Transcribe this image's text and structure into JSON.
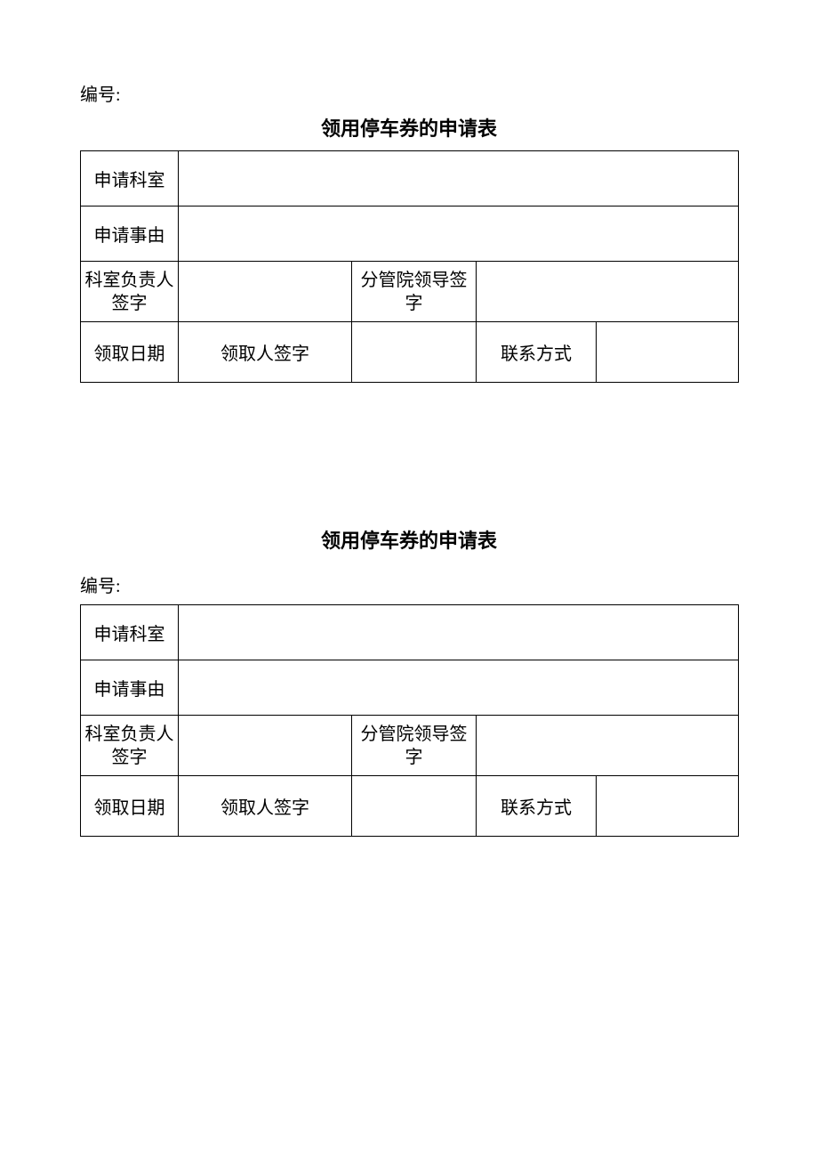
{
  "document": {
    "serial_label": "编号:",
    "title": "领用停车券的申请表",
    "rows": {
      "dept": "申请科室",
      "reason": "申请事由",
      "dept_head_sig": "科室负责人签字",
      "leader_sig": "分管院领导签字",
      "collect_date": "领取日期",
      "collector_sig": "领取人签字",
      "contact": "联系方式"
    },
    "colors": {
      "text": "#000000",
      "border": "#000000",
      "background": "#ffffff"
    },
    "fontsize": {
      "title": 22,
      "body": 20
    }
  }
}
